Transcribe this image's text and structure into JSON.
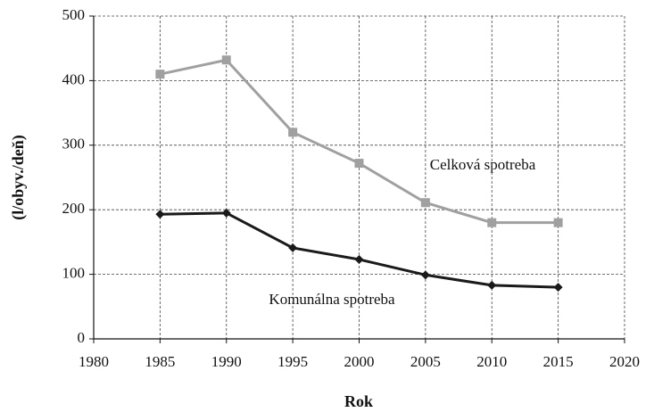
{
  "chart_data": {
    "type": "line",
    "x": [
      1985,
      1990,
      1995,
      2000,
      2005,
      2010,
      2015
    ],
    "series": [
      {
        "name": "Celková spotreba",
        "color": "#a0a0a0",
        "marker": "square",
        "values": [
          410,
          432,
          320,
          272,
          211,
          180,
          180
        ]
      },
      {
        "name": "Komunálna spotreba",
        "color": "#1a1a1a",
        "marker": "diamond",
        "values": [
          193,
          195,
          141,
          123,
          99,
          83,
          80
        ]
      }
    ],
    "xlabel": "Rok",
    "ylabel": "(l/obyv./deň)",
    "xlim": [
      1980,
      2020
    ],
    "xticks": [
      1980,
      1985,
      1990,
      1995,
      2000,
      2005,
      2010,
      2015,
      2020
    ],
    "ylim": [
      0,
      500
    ],
    "yticks": [
      0,
      100,
      200,
      300,
      400,
      500
    ],
    "grid": true
  }
}
